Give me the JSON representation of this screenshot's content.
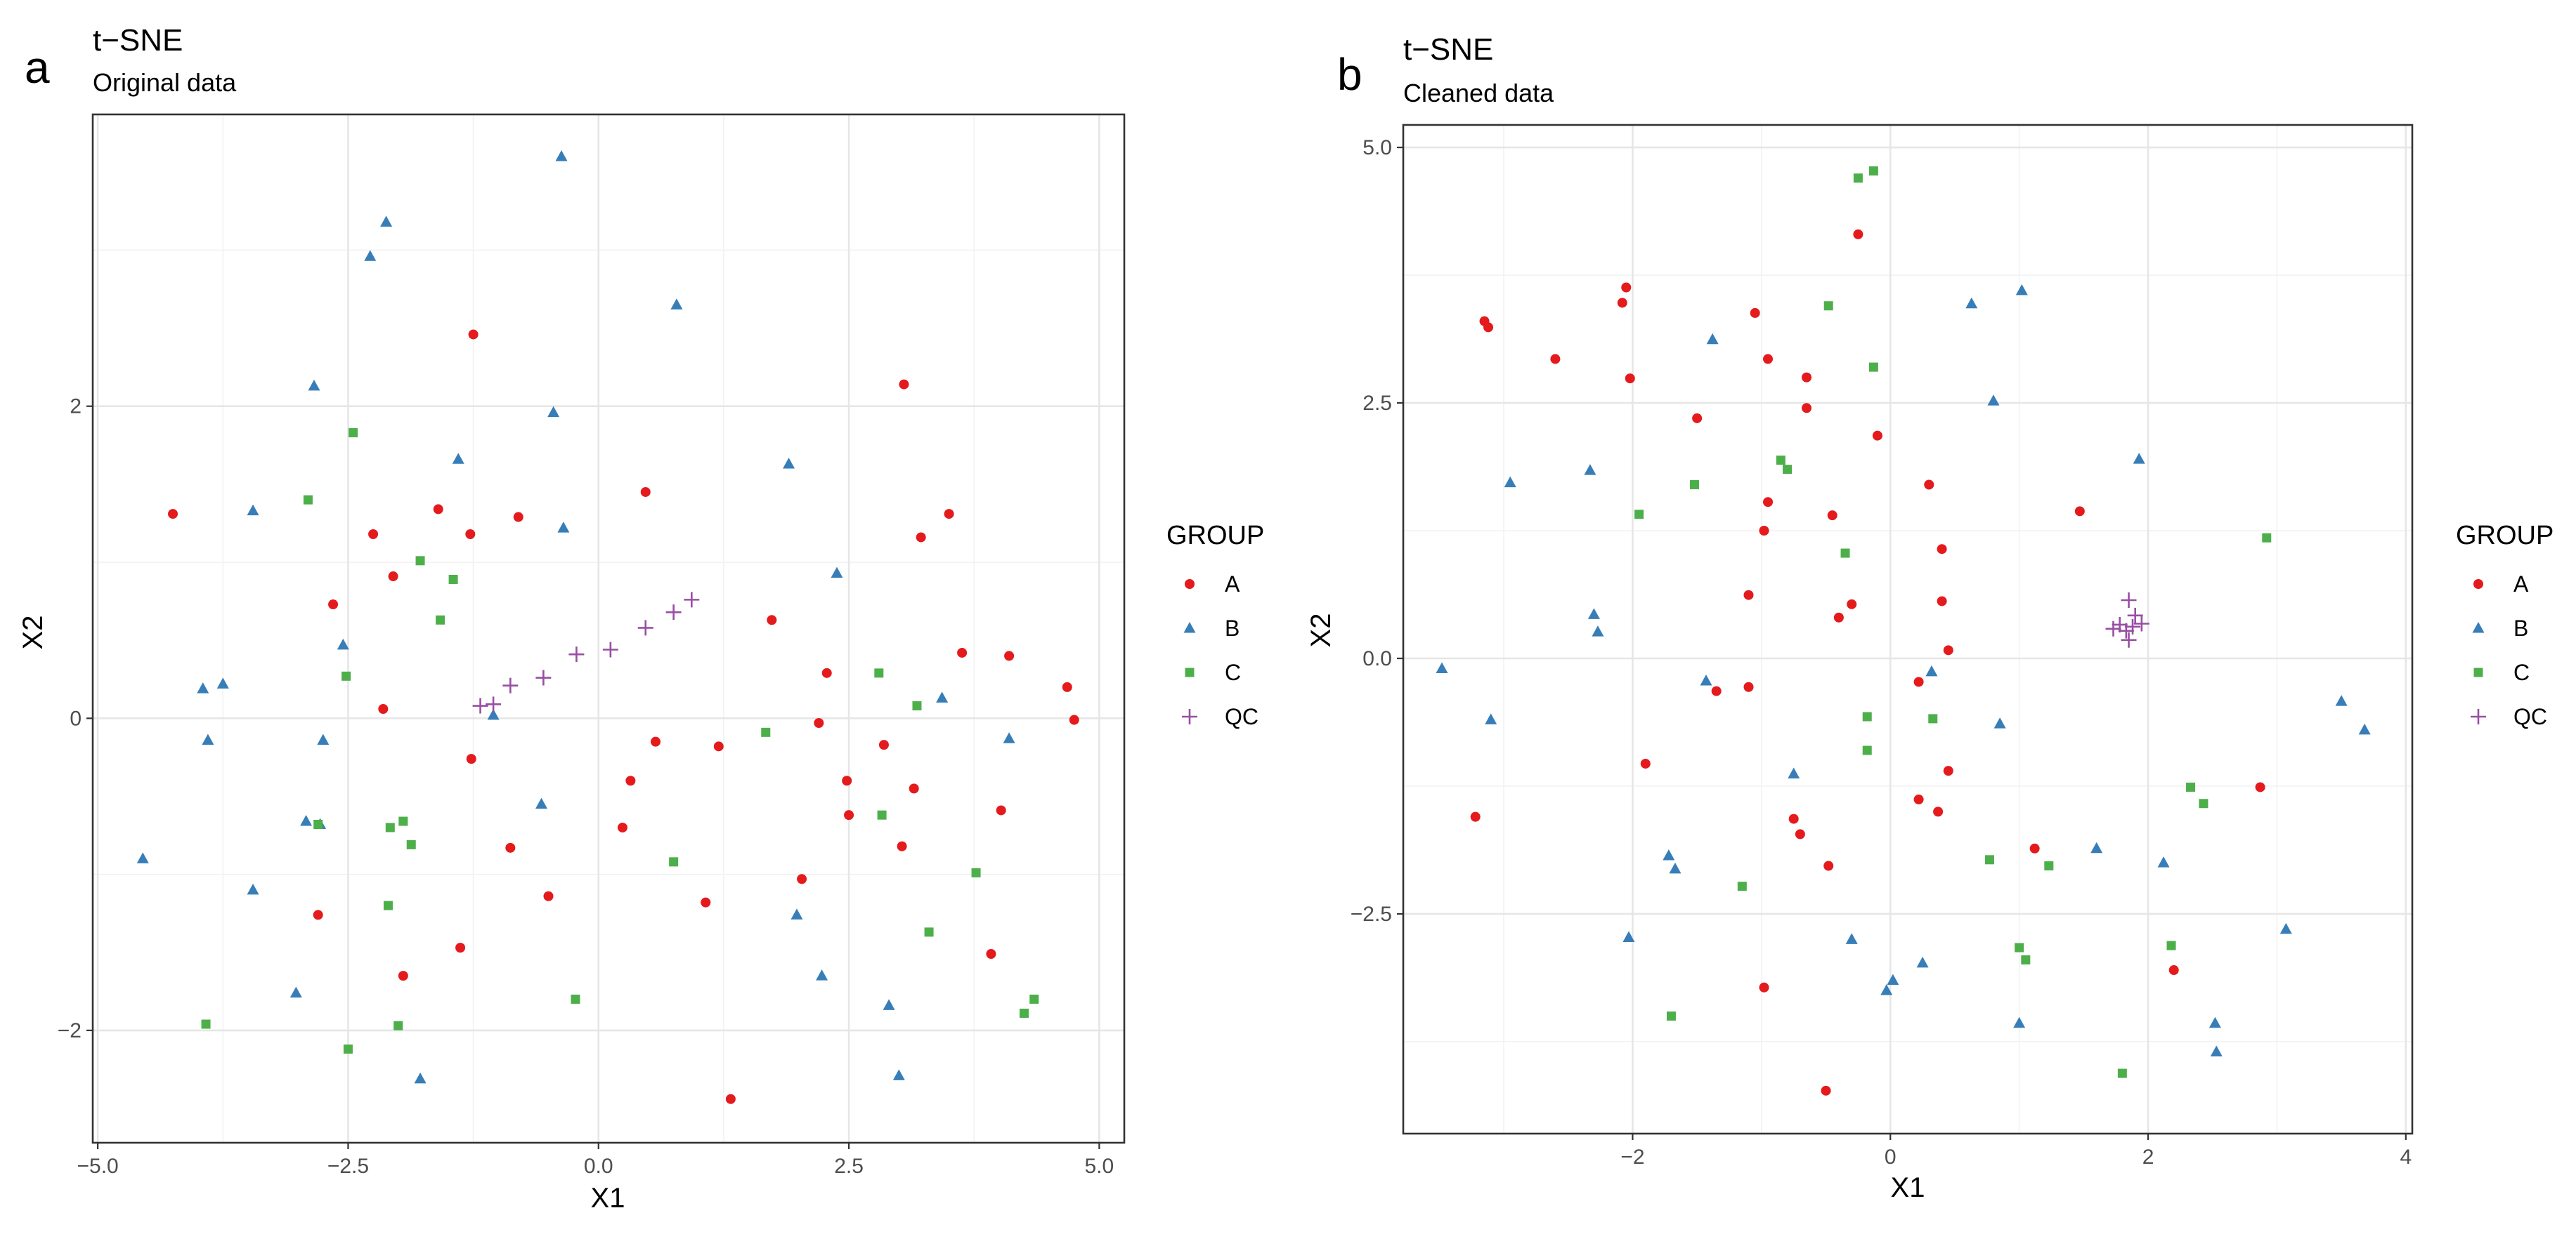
{
  "panels": [
    {
      "letter": "a",
      "title": "t−SNE",
      "subtitle": "Original data",
      "xlabel": "X1",
      "ylabel": "X2",
      "legend_title": "GROUP"
    },
    {
      "letter": "b",
      "title": "t−SNE",
      "subtitle": "Cleaned data",
      "xlabel": "X1",
      "ylabel": "X2",
      "legend_title": "GROUP"
    }
  ],
  "colors": {
    "A": "#E41A1C",
    "B": "#377EB8",
    "C": "#4DAF4A",
    "QC": "#984EA3"
  },
  "chart_data": [
    {
      "type": "scatter",
      "title": "t−SNE",
      "subtitle": "Original data",
      "xlabel": "X1",
      "ylabel": "X2",
      "xlim": [
        -5.05,
        5.25
      ],
      "ylim": [
        -2.72,
        3.87
      ],
      "xticks": [
        -5.0,
        -2.5,
        0.0,
        2.5,
        5.0
      ],
      "xtick_labels": [
        "−5.0",
        "−2.5",
        "0.0",
        "2.5",
        "5.0"
      ],
      "yticks": [
        -2,
        0,
        2
      ],
      "ytick_labels": [
        "−2",
        "0",
        "2"
      ],
      "minor_y": [
        -1,
        1,
        3
      ],
      "minor_x": [
        -3.75,
        -1.25,
        1.25,
        3.75
      ],
      "grid": true,
      "legend": "right",
      "series": [
        {
          "name": "A",
          "shape": "circle",
          "points": [
            [
              -4.25,
              1.31
            ],
            [
              -1.25,
              2.46
            ],
            [
              3.05,
              2.14
            ],
            [
              0.47,
              1.45
            ],
            [
              -2.25,
              1.18
            ],
            [
              -1.6,
              1.34
            ],
            [
              -0.8,
              1.29
            ],
            [
              -1.28,
              1.18
            ],
            [
              3.22,
              1.16
            ],
            [
              3.5,
              1.31
            ],
            [
              -2.65,
              0.73
            ],
            [
              -2.05,
              0.91
            ],
            [
              1.73,
              0.63
            ],
            [
              3.63,
              0.42
            ],
            [
              4.1,
              0.4
            ],
            [
              4.68,
              0.2
            ],
            [
              4.75,
              -0.01
            ],
            [
              2.28,
              0.29
            ],
            [
              2.2,
              -0.03
            ],
            [
              -2.15,
              0.06
            ],
            [
              -1.27,
              -0.26
            ],
            [
              0.57,
              -0.15
            ],
            [
              1.2,
              -0.18
            ],
            [
              2.85,
              -0.17
            ],
            [
              0.32,
              -0.4
            ],
            [
              2.48,
              -0.4
            ],
            [
              3.15,
              -0.45
            ],
            [
              2.5,
              -0.62
            ],
            [
              4.02,
              -0.59
            ],
            [
              0.24,
              -0.7
            ],
            [
              -0.88,
              -0.83
            ],
            [
              3.03,
              -0.82
            ],
            [
              2.03,
              -1.03
            ],
            [
              -0.5,
              -1.14
            ],
            [
              1.07,
              -1.18
            ],
            [
              -2.8,
              -1.26
            ],
            [
              -1.38,
              -1.47
            ],
            [
              3.92,
              -1.51
            ],
            [
              -1.95,
              -1.65
            ],
            [
              1.32,
              -2.44
            ]
          ]
        },
        {
          "name": "B",
          "shape": "triangle",
          "points": [
            [
              -0.37,
              3.6
            ],
            [
              -2.12,
              3.18
            ],
            [
              -2.28,
              2.96
            ],
            [
              0.78,
              2.65
            ],
            [
              -2.84,
              2.13
            ],
            [
              -0.45,
              1.96
            ],
            [
              1.9,
              1.63
            ],
            [
              -1.4,
              1.66
            ],
            [
              -3.45,
              1.33
            ],
            [
              -0.35,
              1.22
            ],
            [
              2.38,
              0.93
            ],
            [
              -2.55,
              0.47
            ],
            [
              -3.95,
              0.19
            ],
            [
              -3.75,
              0.22
            ],
            [
              3.43,
              0.13
            ],
            [
              -1.05,
              0.02
            ],
            [
              -3.9,
              -0.14
            ],
            [
              -2.75,
              -0.14
            ],
            [
              4.1,
              -0.13
            ],
            [
              -0.57,
              -0.55
            ],
            [
              -2.92,
              -0.66
            ],
            [
              -2.78,
              -0.68
            ],
            [
              -4.55,
              -0.9
            ],
            [
              -3.45,
              -1.1
            ],
            [
              1.98,
              -1.26
            ],
            [
              2.23,
              -1.65
            ],
            [
              -3.02,
              -1.76
            ],
            [
              2.9,
              -1.84
            ],
            [
              3.0,
              -2.29
            ],
            [
              -1.78,
              -2.31
            ]
          ]
        },
        {
          "name": "C",
          "shape": "square",
          "points": [
            [
              -2.45,
              1.83
            ],
            [
              -2.9,
              1.4
            ],
            [
              -1.78,
              1.01
            ],
            [
              -1.45,
              0.89
            ],
            [
              -1.58,
              0.63
            ],
            [
              -2.52,
              0.27
            ],
            [
              2.8,
              0.29
            ],
            [
              3.18,
              0.08
            ],
            [
              1.67,
              -0.09
            ],
            [
              2.83,
              -0.62
            ],
            [
              -2.8,
              -0.68
            ],
            [
              -2.08,
              -0.7
            ],
            [
              -1.95,
              -0.66
            ],
            [
              -1.87,
              -0.81
            ],
            [
              0.75,
              -0.92
            ],
            [
              3.77,
              -0.99
            ],
            [
              -2.1,
              -1.2
            ],
            [
              3.3,
              -1.37
            ],
            [
              -0.23,
              -1.8
            ],
            [
              4.35,
              -1.8
            ],
            [
              4.25,
              -1.89
            ],
            [
              -3.92,
              -1.96
            ],
            [
              -2.0,
              -1.97
            ],
            [
              -2.5,
              -2.12
            ]
          ]
        },
        {
          "name": "QC",
          "shape": "plus",
          "points": [
            [
              -1.18,
              0.08
            ],
            [
              -1.05,
              0.09
            ],
            [
              -0.88,
              0.21
            ],
            [
              -0.55,
              0.26
            ],
            [
              -0.22,
              0.41
            ],
            [
              0.12,
              0.44
            ],
            [
              0.47,
              0.58
            ],
            [
              0.75,
              0.68
            ],
            [
              0.93,
              0.76
            ]
          ]
        }
      ]
    },
    {
      "type": "scatter",
      "title": "t−SNE",
      "subtitle": "Cleaned data",
      "xlabel": "X1",
      "ylabel": "X2",
      "xlim": [
        -3.78,
        4.05
      ],
      "ylim": [
        -4.65,
        5.22
      ],
      "xticks": [
        -2,
        0,
        2,
        4
      ],
      "xtick_labels": [
        "−2",
        "0",
        "2",
        "4"
      ],
      "yticks": [
        -2.5,
        0.0,
        2.5,
        5.0
      ],
      "ytick_labels": [
        "−2.5",
        "0.0",
        "2.5",
        "5.0"
      ],
      "minor_y": [
        -3.75,
        -1.25,
        1.25,
        3.75
      ],
      "minor_x": [
        -3,
        -1,
        1,
        3
      ],
      "grid": true,
      "legend": "right",
      "series": [
        {
          "name": "A",
          "shape": "circle",
          "points": [
            [
              -0.25,
              4.15
            ],
            [
              -2.05,
              3.63
            ],
            [
              -2.08,
              3.48
            ],
            [
              -1.05,
              3.38
            ],
            [
              -3.15,
              3.3
            ],
            [
              -3.12,
              3.24
            ],
            [
              -2.6,
              2.93
            ],
            [
              -0.95,
              2.93
            ],
            [
              -0.65,
              2.75
            ],
            [
              -2.02,
              2.74
            ],
            [
              -0.65,
              2.45
            ],
            [
              -1.5,
              2.35
            ],
            [
              -0.1,
              2.18
            ],
            [
              0.3,
              1.7
            ],
            [
              -0.95,
              1.53
            ],
            [
              1.47,
              1.44
            ],
            [
              -0.45,
              1.4
            ],
            [
              -0.98,
              1.25
            ],
            [
              0.4,
              1.07
            ],
            [
              -1.1,
              0.62
            ],
            [
              0.4,
              0.56
            ],
            [
              -0.3,
              0.53
            ],
            [
              -0.4,
              0.4
            ],
            [
              0.45,
              0.08
            ],
            [
              0.22,
              -0.23
            ],
            [
              -1.1,
              -0.28
            ],
            [
              -1.35,
              -0.32
            ],
            [
              -1.9,
              -1.03
            ],
            [
              0.45,
              -1.1
            ],
            [
              0.22,
              -1.38
            ],
            [
              0.37,
              -1.5
            ],
            [
              2.87,
              -1.26
            ],
            [
              -3.22,
              -1.55
            ],
            [
              -0.75,
              -1.57
            ],
            [
              -0.7,
              -1.72
            ],
            [
              1.12,
              -1.86
            ],
            [
              -0.48,
              -2.03
            ],
            [
              2.2,
              -3.05
            ],
            [
              -0.98,
              -3.22
            ],
            [
              -0.5,
              -4.23
            ]
          ]
        },
        {
          "name": "B",
          "shape": "triangle",
          "points": [
            [
              1.02,
              3.6
            ],
            [
              0.63,
              3.47
            ],
            [
              -1.38,
              3.12
            ],
            [
              0.8,
              2.52
            ],
            [
              1.93,
              1.95
            ],
            [
              -2.33,
              1.84
            ],
            [
              -2.95,
              1.72
            ],
            [
              -2.3,
              0.43
            ],
            [
              -2.27,
              0.26
            ],
            [
              -3.48,
              -0.1
            ],
            [
              0.32,
              -0.13
            ],
            [
              -1.43,
              -0.22
            ],
            [
              -3.1,
              -0.6
            ],
            [
              0.85,
              -0.64
            ],
            [
              3.5,
              -0.42
            ],
            [
              3.68,
              -0.7
            ],
            [
              -0.75,
              -1.13
            ],
            [
              -1.72,
              -1.93
            ],
            [
              -1.67,
              -2.06
            ],
            [
              1.6,
              -1.86
            ],
            [
              2.12,
              -2.0
            ],
            [
              -2.03,
              -2.73
            ],
            [
              -0.3,
              -2.75
            ],
            [
              3.07,
              -2.65
            ],
            [
              0.25,
              -2.98
            ],
            [
              0.02,
              -3.15
            ],
            [
              -0.03,
              -3.25
            ],
            [
              1.0,
              -3.57
            ],
            [
              2.52,
              -3.57
            ],
            [
              2.53,
              -3.85
            ]
          ]
        },
        {
          "name": "C",
          "shape": "square",
          "points": [
            [
              -0.13,
              4.77
            ],
            [
              -0.25,
              4.7
            ],
            [
              -0.48,
              3.45
            ],
            [
              -0.13,
              2.85
            ],
            [
              -0.85,
              1.94
            ],
            [
              -0.8,
              1.85
            ],
            [
              -1.52,
              1.7
            ],
            [
              -1.95,
              1.41
            ],
            [
              -0.35,
              1.03
            ],
            [
              2.92,
              1.18
            ],
            [
              -0.18,
              -0.57
            ],
            [
              0.33,
              -0.59
            ],
            [
              -0.18,
              -0.9
            ],
            [
              2.33,
              -1.26
            ],
            [
              2.43,
              -1.42
            ],
            [
              0.77,
              -1.97
            ],
            [
              1.23,
              -2.03
            ],
            [
              -1.15,
              -2.23
            ],
            [
              2.18,
              -2.81
            ],
            [
              1.0,
              -2.83
            ],
            [
              1.05,
              -2.95
            ],
            [
              -1.7,
              -3.5
            ],
            [
              1.8,
              -4.06
            ]
          ]
        },
        {
          "name": "QC",
          "shape": "plus",
          "points": [
            [
              1.85,
              0.57
            ],
            [
              1.9,
              0.42
            ],
            [
              1.78,
              0.33
            ],
            [
              1.95,
              0.34
            ],
            [
              1.83,
              0.27
            ],
            [
              1.88,
              0.31
            ],
            [
              1.85,
              0.18
            ],
            [
              1.73,
              0.29
            ]
          ]
        }
      ]
    }
  ]
}
